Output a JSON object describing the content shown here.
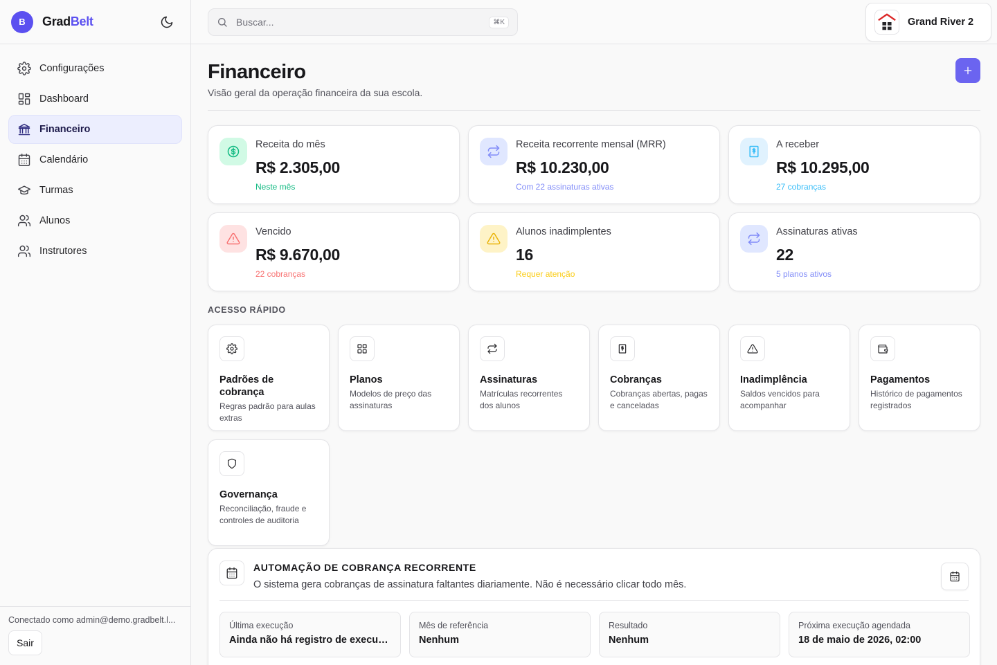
{
  "brand": {
    "avatar_letter": "B",
    "name_part1": "Grad",
    "name_part2": "Belt",
    "accent": "#5b50f0"
  },
  "sidebar": {
    "items": [
      {
        "label": "Configurações",
        "icon": "gear-icon",
        "active": false
      },
      {
        "label": "Dashboard",
        "icon": "dashboard-icon",
        "active": false
      },
      {
        "label": "Financeiro",
        "icon": "bank-icon",
        "active": true
      },
      {
        "label": "Calendário",
        "icon": "calendar-icon",
        "active": false
      },
      {
        "label": "Turmas",
        "icon": "graduation-cap-icon",
        "active": false
      },
      {
        "label": "Alunos",
        "icon": "users-icon",
        "active": false
      },
      {
        "label": "Instrutores",
        "icon": "users-icon",
        "active": false
      }
    ],
    "connected_as": "Conectado como admin@demo.gradbelt.l...",
    "logout_label": "Sair"
  },
  "topbar": {
    "search_placeholder": "Buscar...",
    "shortcut": "⌘K",
    "school_name": "Grand River 2"
  },
  "page": {
    "title": "Financeiro",
    "subtitle": "Visão geral da operação financeira da sua escola."
  },
  "stats": [
    {
      "label": "Receita do mês",
      "value": "R$ 2.305,00",
      "sub": "Neste mês",
      "icon": "dollar-icon",
      "color": "#10b981"
    },
    {
      "label": "Receita recorrente mensal (MRR)",
      "value": "R$ 10.230,00",
      "sub": "Com 22 assinaturas ativas",
      "icon": "repeat-icon",
      "color": "#818cf8"
    },
    {
      "label": "A receber",
      "value": "R$ 10.295,00",
      "sub": "27 cobranças",
      "icon": "receipt-icon",
      "color": "#38bdf8"
    },
    {
      "label": "Vencido",
      "value": "R$ 9.670,00",
      "sub": "22 cobranças",
      "icon": "alert-icon",
      "color": "#f87171"
    },
    {
      "label": "Alunos inadimplentes",
      "value": "16",
      "sub": "Requer atenção",
      "icon": "alert-icon",
      "color": "#facc15"
    },
    {
      "label": "Assinaturas ativas",
      "value": "22",
      "sub": "5 planos ativos",
      "icon": "repeat-icon",
      "color": "#818cf8"
    }
  ],
  "quick_access": {
    "label": "ACESSO RÁPIDO",
    "items": [
      {
        "title": "Padrões de cobrança",
        "desc": "Regras padrão para aulas extras",
        "icon": "gear-icon"
      },
      {
        "title": "Planos",
        "desc": "Modelos de preço das assinaturas",
        "icon": "grid-icon"
      },
      {
        "title": "Assinaturas",
        "desc": "Matrículas recorrentes dos alunos",
        "icon": "repeat-icon"
      },
      {
        "title": "Cobranças",
        "desc": "Cobranças abertas, pagas e canceladas",
        "icon": "receipt-icon"
      },
      {
        "title": "Inadimplência",
        "desc": "Saldos vencidos para acompanhar",
        "icon": "alert-icon"
      },
      {
        "title": "Pagamentos",
        "desc": "Histórico de pagamentos registrados",
        "icon": "wallet-icon"
      },
      {
        "title": "Governança",
        "desc": "Reconciliação, fraude e controles de auditoria",
        "icon": "shield-icon"
      }
    ]
  },
  "automation": {
    "title": "AUTOMAÇÃO DE COBRANÇA RECORRENTE",
    "desc": "O sistema gera cobranças de assinatura faltantes diariamente. Não é necessário clicar todo mês.",
    "cells": [
      {
        "label": "Última execução",
        "value": "Ainda não há registro de execução"
      },
      {
        "label": "Mês de referência",
        "value": "Nenhum"
      },
      {
        "label": "Resultado",
        "value": "Nenhum"
      },
      {
        "label": "Próxima execução agendada",
        "value": "18 de maio de 2026, 02:00"
      }
    ]
  }
}
